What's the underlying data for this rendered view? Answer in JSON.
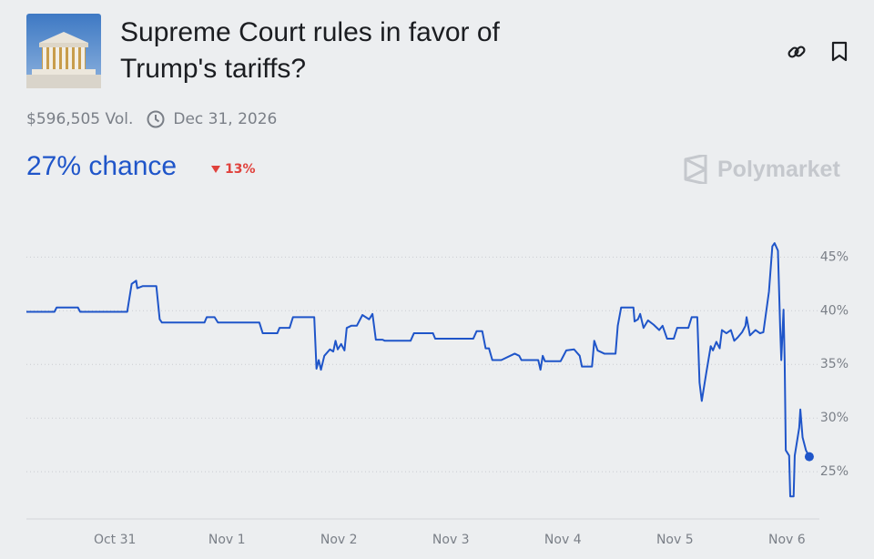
{
  "market": {
    "title": "Supreme Court rules in favor of Trump's tariffs?",
    "volume": "$596,505 Vol.",
    "end_date": "Dec 31, 2026",
    "chance": "27% chance",
    "change": "13%",
    "brand": "Polymarket"
  },
  "chart_data": {
    "type": "line",
    "color": "#1f55c9",
    "x": [
      -0.79,
      -0.54,
      -0.52,
      -0.33,
      -0.31,
      0.11,
      0.15,
      0.19,
      0.2,
      0.25,
      0.28,
      0.37,
      0.4,
      0.42,
      0.8,
      0.82,
      0.89,
      0.92,
      1.29,
      1.32,
      1.45,
      1.47,
      1.56,
      1.59,
      1.78,
      1.8,
      1.82,
      1.84,
      1.87,
      1.92,
      1.95,
      1.97,
      1.99,
      2.02,
      2.05,
      2.07,
      2.11,
      2.16,
      2.21,
      2.27,
      2.3,
      2.33,
      2.39,
      2.41,
      2.64,
      2.67,
      2.84,
      2.86,
      3.2,
      3.23,
      3.28,
      3.31,
      3.34,
      3.37,
      3.45,
      3.57,
      3.61,
      3.63,
      3.78,
      3.8,
      3.82,
      3.84,
      3.98,
      4.0,
      4.03,
      4.1,
      4.15,
      4.17,
      4.26,
      4.28,
      4.31,
      4.37,
      4.47,
      4.49,
      4.52,
      4.63,
      4.64,
      4.67,
      4.69,
      4.72,
      4.76,
      4.81,
      4.86,
      4.89,
      4.93,
      4.99,
      5.02,
      5.12,
      5.15,
      5.2,
      5.22,
      5.24,
      5.26,
      5.28,
      5.32,
      5.34,
      5.37,
      5.4,
      5.42,
      5.46,
      5.5,
      5.53,
      5.56,
      5.6,
      5.63,
      5.64,
      5.67,
      5.72,
      5.76,
      5.79,
      5.84,
      5.87,
      5.89,
      5.92,
      5.94,
      5.95,
      5.97,
      5.98,
      5.99,
      6.02,
      6.03,
      6.06,
      6.07,
      6.11,
      6.12,
      6.14,
      6.17,
      6.2
    ],
    "values": [
      39.9,
      39.9,
      40.3,
      40.3,
      39.9,
      39.9,
      42.5,
      42.8,
      42.1,
      42.3,
      42.3,
      42.3,
      39.2,
      38.9,
      38.9,
      39.4,
      39.4,
      38.9,
      38.9,
      37.9,
      37.9,
      38.4,
      38.4,
      39.4,
      39.4,
      34.6,
      35.4,
      34.5,
      35.8,
      36.4,
      36.2,
      37.2,
      36.4,
      36.9,
      36.3,
      38.4,
      38.6,
      38.6,
      39.6,
      39.2,
      39.7,
      37.3,
      37.3,
      37.2,
      37.2,
      37.9,
      37.9,
      37.4,
      37.4,
      38.1,
      38.1,
      36.5,
      36.5,
      35.4,
      35.4,
      36.0,
      35.8,
      35.4,
      35.4,
      34.5,
      35.8,
      35.3,
      35.3,
      35.7,
      36.3,
      36.4,
      35.8,
      34.8,
      34.8,
      37.2,
      36.3,
      36.0,
      36.0,
      38.6,
      40.3,
      40.3,
      39.0,
      39.2,
      39.7,
      38.4,
      39.1,
      38.7,
      38.2,
      38.6,
      37.4,
      37.4,
      38.4,
      38.4,
      39.4,
      39.4,
      33.3,
      31.6,
      32.9,
      34.2,
      36.7,
      36.3,
      37.1,
      36.5,
      38.2,
      37.9,
      38.2,
      37.2,
      37.5,
      38.0,
      38.6,
      39.4,
      37.7,
      38.2,
      37.9,
      38.0,
      41.8,
      46.0,
      46.3,
      45.6,
      38.4,
      35.4,
      40.1,
      35.4,
      27.0,
      26.5,
      22.7,
      22.7,
      26.5,
      29.1,
      30.8,
      28.2,
      27.0,
      26.4
    ],
    "xlim": [
      -0.79,
      6.29
    ],
    "xticks": [
      {
        "value": 0,
        "label": "Oct 31"
      },
      {
        "value": 1,
        "label": "Nov 1"
      },
      {
        "value": 2,
        "label": "Nov 2"
      },
      {
        "value": 3,
        "label": "Nov 3"
      },
      {
        "value": 4,
        "label": "Nov 4"
      },
      {
        "value": 5,
        "label": "Nov 5"
      },
      {
        "value": 6,
        "label": "Nov 6"
      }
    ],
    "ylim": [
      20.6,
      48
    ],
    "yticks": [
      {
        "value": 25,
        "label": "25%"
      },
      {
        "value": 30,
        "label": "30%"
      },
      {
        "value": 35,
        "label": "35%"
      },
      {
        "value": 40,
        "label": "40%"
      },
      {
        "value": 45,
        "label": "45%"
      }
    ],
    "grid": true
  }
}
